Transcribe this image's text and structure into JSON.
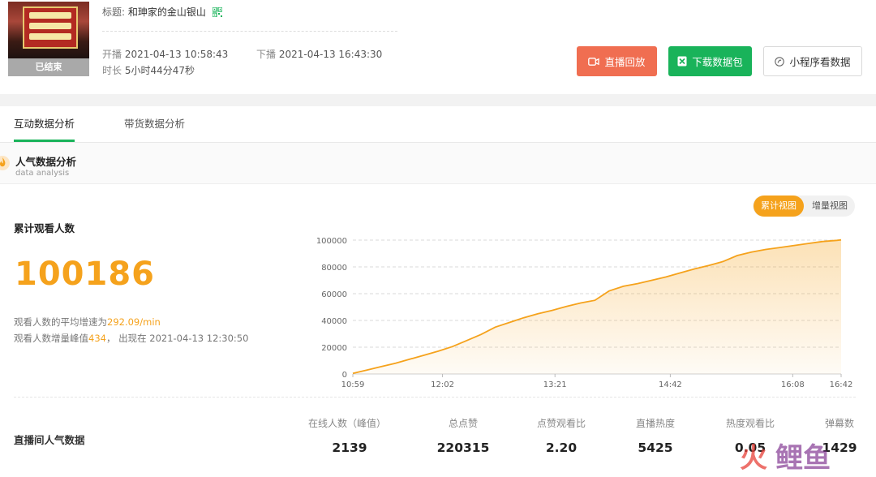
{
  "broadcast": {
    "status_badge": "已结束",
    "title_label": "标题:",
    "title": "和珅家的金山银山",
    "start_label": "开播",
    "start_time": "2021-04-13 10:58:43",
    "end_label": "下播",
    "end_time": "2021-04-13 16:43:30",
    "duration_label": "时长",
    "duration": "5小时44分47秒"
  },
  "actions": {
    "replay": "直播回放",
    "download": "下载数据包",
    "mini_program": "小程序看数据"
  },
  "tabs": [
    {
      "label": "互动数据分析",
      "active": true
    },
    {
      "label": "带货数据分析",
      "active": false
    }
  ],
  "section": {
    "title": "人气数据分析",
    "subtitle": "data analysis"
  },
  "viewers": {
    "title": "累计观看人数",
    "total": "100186",
    "avg_prefix": "观看人数的平均增速为",
    "avg_value": "292.09/min",
    "peak_prefix": "观看人数增量峰值",
    "peak_value": "434",
    "peak_suffix": "， 出现在 2021-04-13 12:30:50"
  },
  "view_toggle": {
    "cumulative": "累计视图",
    "incremental": "增量视图",
    "selected": "cumulative"
  },
  "colors": {
    "accent": "#f5a21c",
    "green": "#19b35a",
    "replay": "#f06e51"
  },
  "chart_data": {
    "type": "area",
    "x_tick_labels": [
      "10:59",
      "12:02",
      "13:21",
      "14:42",
      "16:08",
      "16:42"
    ],
    "x_tick_minutes": [
      0,
      63,
      142,
      223,
      309,
      343
    ],
    "y_ticks": [
      0,
      20000,
      40000,
      60000,
      80000,
      100000
    ],
    "ylim": [
      0,
      100000
    ],
    "xlim_minutes": [
      0,
      343
    ],
    "grid": true,
    "series": [
      {
        "values_x_minutes": [
          0,
          10,
          20,
          30,
          40,
          50,
          60,
          70,
          80,
          90,
          100,
          110,
          120,
          130,
          140,
          150,
          160,
          170,
          180,
          190,
          200,
          210,
          220,
          230,
          240,
          250,
          260,
          270,
          280,
          290,
          300,
          310,
          320,
          330,
          340,
          343
        ],
        "values_y": [
          500,
          3000,
          5500,
          8000,
          11000,
          14000,
          17000,
          20500,
          25000,
          29500,
          35000,
          38500,
          42000,
          45000,
          47500,
          50500,
          53000,
          55000,
          62000,
          65500,
          67500,
          70000,
          72500,
          75500,
          78500,
          81000,
          84000,
          88500,
          91000,
          93000,
          94500,
          96000,
          97500,
          99000,
          99800,
          100186
        ]
      }
    ]
  },
  "popularity": {
    "label": "直播间人气数据",
    "metrics": [
      {
        "name": "在线人数（峰值）",
        "value": "2139"
      },
      {
        "name": "总点赞",
        "value": "220315"
      },
      {
        "name": "点赞观看比",
        "value": "2.20"
      },
      {
        "name": "直播热度",
        "value": "5425"
      },
      {
        "name": "热度观看比",
        "value": "0.05"
      },
      {
        "name": "弹幕数",
        "value": "1429"
      }
    ]
  },
  "watermark": {
    "left": "火",
    "right": "鲤鱼"
  }
}
